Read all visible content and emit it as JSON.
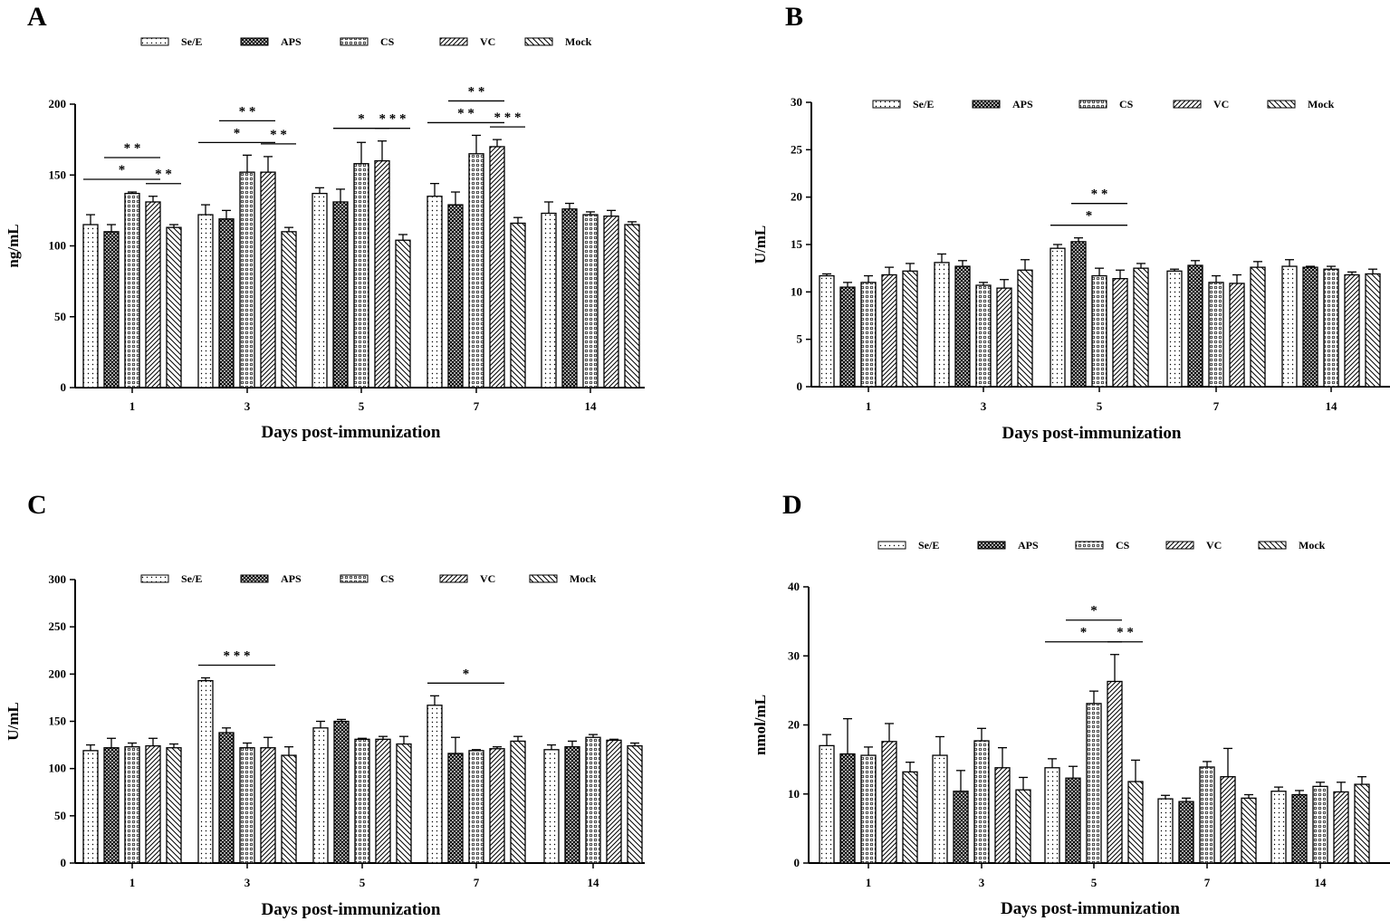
{
  "chart_data": [
    {
      "type": "bar",
      "panel": "A",
      "title": "",
      "xlabel": "Days post-immunization",
      "ylabel": "ng/mL",
      "ylim": [
        0,
        200
      ],
      "yticks": [
        "0",
        "50",
        "100",
        "150",
        "200"
      ],
      "categories": [
        "1",
        "3",
        "5",
        "7",
        "14"
      ],
      "series": [
        {
          "name": "Se/E",
          "pattern": "dots",
          "values": [
            115,
            122,
            137,
            135,
            123
          ],
          "errors": [
            7,
            7,
            4,
            9,
            8
          ]
        },
        {
          "name": "APS",
          "pattern": "cross",
          "values": [
            110,
            119,
            131,
            129,
            126
          ],
          "errors": [
            5,
            6,
            9,
            9,
            4
          ]
        },
        {
          "name": "CS",
          "pattern": "circles",
          "values": [
            137,
            152,
            158,
            165,
            122
          ],
          "errors": [
            1,
            12,
            15,
            13,
            2
          ]
        },
        {
          "name": "VC",
          "pattern": "diag-right",
          "values": [
            131,
            152,
            160,
            170,
            121
          ],
          "errors": [
            4,
            11,
            14,
            5,
            4
          ]
        },
        {
          "name": "Mock",
          "pattern": "diag-left",
          "values": [
            113,
            110,
            104,
            116,
            115
          ],
          "errors": [
            2,
            3,
            4,
            4,
            2
          ]
        }
      ],
      "significance": [
        {
          "label": "*",
          "group": "1",
          "from": "Se/E",
          "to": "VC"
        },
        {
          "label": "**",
          "group": "1",
          "from": "APS",
          "to": "VC"
        },
        {
          "label": "**",
          "group": "1",
          "from": "VC",
          "to": "Mock"
        },
        {
          "label": "*",
          "group": "3",
          "from": "Se/E",
          "to": "VC"
        },
        {
          "label": "**",
          "group": "3",
          "from": "APS",
          "to": "VC"
        },
        {
          "label": "**",
          "group": "3",
          "from": "VC",
          "to": "Mock"
        },
        {
          "label": "*",
          "group": "5",
          "from": "APS",
          "to": "VC"
        },
        {
          "label": "***",
          "group": "5",
          "from": "VC",
          "to": "Mock"
        },
        {
          "label": "**",
          "group": "7",
          "from": "Se/E",
          "to": "VC"
        },
        {
          "label": "**",
          "group": "7",
          "from": "APS",
          "to": "VC"
        },
        {
          "label": "***",
          "group": "7",
          "from": "VC",
          "to": "Mock"
        }
      ]
    },
    {
      "type": "bar",
      "panel": "B",
      "title": "",
      "xlabel": "Days post-immunization",
      "ylabel": "U/mL",
      "ylim": [
        0,
        30
      ],
      "yticks": [
        "0",
        "5",
        "10",
        "15",
        "20",
        "25",
        "30"
      ],
      "categories": [
        "1",
        "3",
        "5",
        "7",
        "14"
      ],
      "series": [
        {
          "name": "Se/E",
          "pattern": "dots",
          "values": [
            11.7,
            13.1,
            14.6,
            12.2,
            12.7
          ],
          "errors": [
            0.2,
            0.9,
            0.4,
            0.2,
            0.7
          ]
        },
        {
          "name": "APS",
          "pattern": "cross",
          "values": [
            10.5,
            12.7,
            15.3,
            12.8,
            12.6
          ],
          "errors": [
            0.5,
            0.6,
            0.4,
            0.5,
            0.1
          ]
        },
        {
          "name": "CS",
          "pattern": "circles",
          "values": [
            11.0,
            10.7,
            11.7,
            11.0,
            12.4
          ],
          "errors": [
            0.7,
            0.3,
            0.8,
            0.7,
            0.3
          ]
        },
        {
          "name": "VC",
          "pattern": "diag-right",
          "values": [
            11.8,
            10.4,
            11.4,
            10.9,
            11.8
          ],
          "errors": [
            0.8,
            0.9,
            0.9,
            0.9,
            0.3
          ]
        },
        {
          "name": "Mock",
          "pattern": "diag-left",
          "values": [
            12.2,
            12.3,
            12.5,
            12.6,
            11.9
          ],
          "errors": [
            0.8,
            1.1,
            0.5,
            0.6,
            0.5
          ]
        }
      ],
      "significance": [
        {
          "label": "*",
          "group": "5",
          "from": "Se/E",
          "to": "VC"
        },
        {
          "label": "**",
          "group": "5",
          "from": "APS",
          "to": "VC"
        }
      ]
    },
    {
      "type": "bar",
      "panel": "C",
      "title": "",
      "xlabel": "Days post-immunization",
      "ylabel": "U/mL",
      "ylim": [
        0,
        300
      ],
      "yticks": [
        "0",
        "50",
        "100",
        "150",
        "200",
        "250",
        "300"
      ],
      "categories": [
        "1",
        "3",
        "5",
        "7",
        "14"
      ],
      "series": [
        {
          "name": "Se/E",
          "pattern": "dots",
          "values": [
            119,
            193,
            143,
            167,
            120
          ],
          "errors": [
            6,
            3,
            7,
            10,
            5
          ]
        },
        {
          "name": "APS",
          "pattern": "cross",
          "values": [
            122,
            138,
            150,
            116,
            123
          ],
          "errors": [
            10,
            5,
            2,
            17,
            6
          ]
        },
        {
          "name": "CS",
          "pattern": "circles",
          "values": [
            123,
            122,
            131,
            119,
            133
          ],
          "errors": [
            4,
            5,
            1,
            1,
            3
          ]
        },
        {
          "name": "VC",
          "pattern": "diag-right",
          "values": [
            124,
            122,
            131,
            121,
            130
          ],
          "errors": [
            8,
            11,
            3,
            2,
            1
          ]
        },
        {
          "name": "Mock",
          "pattern": "diag-left",
          "values": [
            122,
            114,
            126,
            129,
            124
          ],
          "errors": [
            4,
            9,
            8,
            5,
            3
          ]
        }
      ],
      "significance": [
        {
          "label": "***",
          "group": "3",
          "from": "Se/E",
          "to": "VC"
        },
        {
          "label": "*",
          "group": "7",
          "from": "Se/E",
          "to": "VC"
        }
      ]
    },
    {
      "type": "bar",
      "panel": "D",
      "title": "",
      "xlabel": "Days post-immunization",
      "ylabel": "nmol/mL",
      "ylim": [
        0,
        40
      ],
      "yticks": [
        "0",
        "10",
        "20",
        "30",
        "40"
      ],
      "categories": [
        "1",
        "3",
        "5",
        "7",
        "14"
      ],
      "series": [
        {
          "name": "Se/E",
          "pattern": "dots",
          "values": [
            17.0,
            15.6,
            13.8,
            9.3,
            10.4
          ],
          "errors": [
            1.6,
            2.7,
            1.3,
            0.5,
            0.6
          ]
        },
        {
          "name": "APS",
          "pattern": "cross",
          "values": [
            15.8,
            10.4,
            12.3,
            8.9,
            9.9
          ],
          "errors": [
            5.1,
            3.0,
            1.7,
            0.5,
            0.6
          ]
        },
        {
          "name": "CS",
          "pattern": "circles",
          "values": [
            15.6,
            17.7,
            23.1,
            13.9,
            11.1
          ],
          "errors": [
            1.2,
            1.8,
            1.8,
            0.8,
            0.6
          ]
        },
        {
          "name": "VC",
          "pattern": "diag-right",
          "values": [
            17.6,
            13.8,
            26.3,
            12.5,
            10.3
          ],
          "errors": [
            2.6,
            2.9,
            3.9,
            4.1,
            1.4
          ]
        },
        {
          "name": "Mock",
          "pattern": "diag-left",
          "values": [
            13.2,
            10.6,
            11.8,
            9.4,
            11.4
          ],
          "errors": [
            1.4,
            1.8,
            3.1,
            0.5,
            1.1
          ]
        }
      ],
      "significance": [
        {
          "label": "*",
          "group": "5",
          "from": "Se/E",
          "to": "VC"
        },
        {
          "label": "*",
          "group": "5",
          "from": "APS",
          "to": "VC"
        },
        {
          "label": "**",
          "group": "5",
          "from": "VC",
          "to": "Mock"
        }
      ]
    }
  ]
}
